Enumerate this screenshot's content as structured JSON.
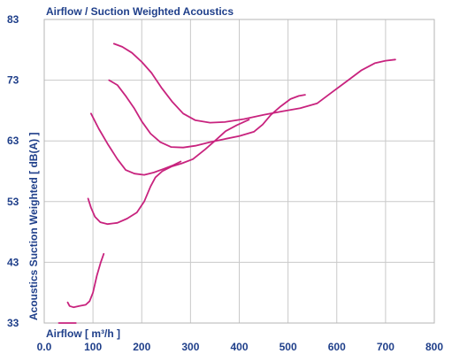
{
  "chart_data": {
    "type": "line",
    "title": "Airflow / Suction Weighted Acoustics",
    "xlabel": "Airflow [ m³/h ]",
    "ylabel": "Acoustics Suction Weighted [ dB(A) ]",
    "xlim": [
      0,
      800
    ],
    "ylim": [
      33,
      83
    ],
    "x_ticks": [
      "0.0",
      "100",
      "200",
      "300",
      "400",
      "500",
      "600",
      "700",
      "800"
    ],
    "y_ticks": [
      "33",
      "43",
      "53",
      "63",
      "73",
      "83"
    ],
    "x_tick_values": [
      0,
      100,
      200,
      300,
      400,
      500,
      600,
      700,
      800
    ],
    "y_tick_values": [
      33,
      43,
      53,
      63,
      73,
      83
    ],
    "grid": true,
    "line_color": "#c8237e",
    "series": [
      {
        "points": [
          [
            30,
            33.0
          ],
          [
            65,
            33.0
          ]
        ]
      },
      {
        "points": [
          [
            48,
            36.4
          ],
          [
            52,
            35.8
          ],
          [
            60,
            35.6
          ],
          [
            72,
            35.8
          ],
          [
            85,
            36.0
          ],
          [
            93,
            36.6
          ],
          [
            100,
            38.0
          ],
          [
            108,
            40.8
          ],
          [
            116,
            43.0
          ],
          [
            122,
            44.4
          ]
        ]
      },
      {
        "points": [
          [
            90,
            53.5
          ],
          [
            96,
            52.0
          ],
          [
            104,
            50.5
          ],
          [
            115,
            49.6
          ],
          [
            130,
            49.3
          ],
          [
            150,
            49.5
          ],
          [
            170,
            50.2
          ],
          [
            190,
            51.2
          ],
          [
            205,
            53.0
          ],
          [
            218,
            55.5
          ],
          [
            228,
            57.0
          ],
          [
            242,
            58.0
          ],
          [
            262,
            58.8
          ],
          [
            282,
            59.3
          ],
          [
            305,
            60.0
          ],
          [
            330,
            61.6
          ],
          [
            350,
            63.0
          ],
          [
            372,
            64.6
          ],
          [
            395,
            65.6
          ],
          [
            420,
            66.5
          ]
        ]
      },
      {
        "points": [
          [
            96,
            67.5
          ],
          [
            112,
            65.0
          ],
          [
            130,
            62.5
          ],
          [
            150,
            60.0
          ],
          [
            167,
            58.2
          ],
          [
            185,
            57.6
          ],
          [
            205,
            57.4
          ],
          [
            225,
            57.8
          ],
          [
            245,
            58.4
          ],
          [
            265,
            59.0
          ],
          [
            280,
            59.6
          ]
        ]
      },
      {
        "points": [
          [
            133,
            73.0
          ],
          [
            150,
            72.2
          ],
          [
            168,
            70.3
          ],
          [
            185,
            68.3
          ],
          [
            200,
            66.2
          ],
          [
            218,
            64.2
          ],
          [
            238,
            62.8
          ],
          [
            260,
            62.0
          ],
          [
            285,
            61.9
          ],
          [
            310,
            62.2
          ],
          [
            340,
            62.8
          ],
          [
            370,
            63.3
          ],
          [
            400,
            63.8
          ],
          [
            430,
            64.5
          ],
          [
            448,
            65.7
          ],
          [
            465,
            67.3
          ],
          [
            485,
            68.7
          ],
          [
            505,
            69.9
          ],
          [
            522,
            70.4
          ],
          [
            535,
            70.6
          ]
        ]
      },
      {
        "points": [
          [
            143,
            79.0
          ],
          [
            160,
            78.5
          ],
          [
            180,
            77.5
          ],
          [
            200,
            76.0
          ],
          [
            220,
            74.2
          ],
          [
            240,
            71.8
          ],
          [
            262,
            69.5
          ],
          [
            285,
            67.5
          ],
          [
            310,
            66.4
          ],
          [
            340,
            66.0
          ],
          [
            370,
            66.1
          ],
          [
            410,
            66.6
          ],
          [
            450,
            67.3
          ],
          [
            490,
            67.9
          ],
          [
            525,
            68.4
          ],
          [
            560,
            69.2
          ],
          [
            590,
            71.0
          ],
          [
            620,
            72.8
          ],
          [
            650,
            74.6
          ],
          [
            678,
            75.8
          ],
          [
            700,
            76.2
          ],
          [
            720,
            76.4
          ]
        ]
      }
    ]
  }
}
